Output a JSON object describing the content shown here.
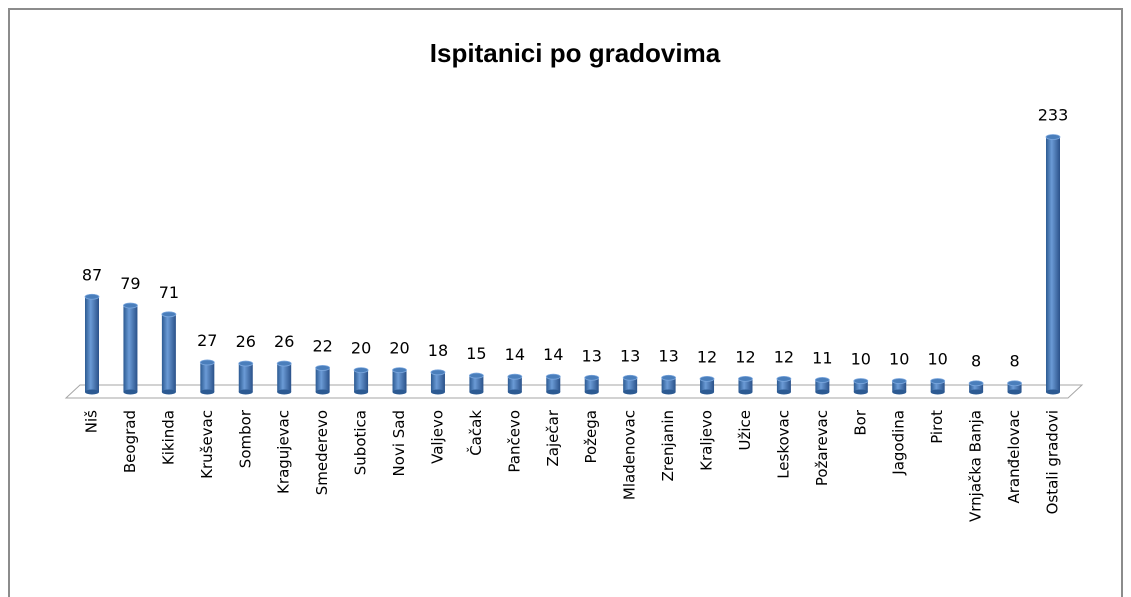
{
  "chart_data": {
    "type": "bar",
    "title": "Ispitanici po gradovima",
    "categories": [
      "Niš",
      "Beograd",
      "Kikinda",
      "Kruševac",
      "Sombor",
      "Kragujevac",
      "Smederevo",
      "Subotica",
      "Novi Sad",
      "Valjevo",
      "Čačak",
      "Pančevo",
      "Zaječar",
      "Požega",
      "Mladenovac",
      "Zrenjanin",
      "Kraljevo",
      "Užice",
      "Leskovac",
      "Požarevac",
      "Bor",
      "Jagodina",
      "Pirot",
      "Vrnjačka Banja",
      "Aranđelovac",
      "Ostali gradovi"
    ],
    "values": [
      87,
      79,
      71,
      27,
      26,
      26,
      22,
      20,
      20,
      18,
      15,
      14,
      14,
      13,
      13,
      13,
      12,
      12,
      12,
      11,
      10,
      10,
      10,
      8,
      8,
      233
    ],
    "color": "#4a7ebb"
  }
}
